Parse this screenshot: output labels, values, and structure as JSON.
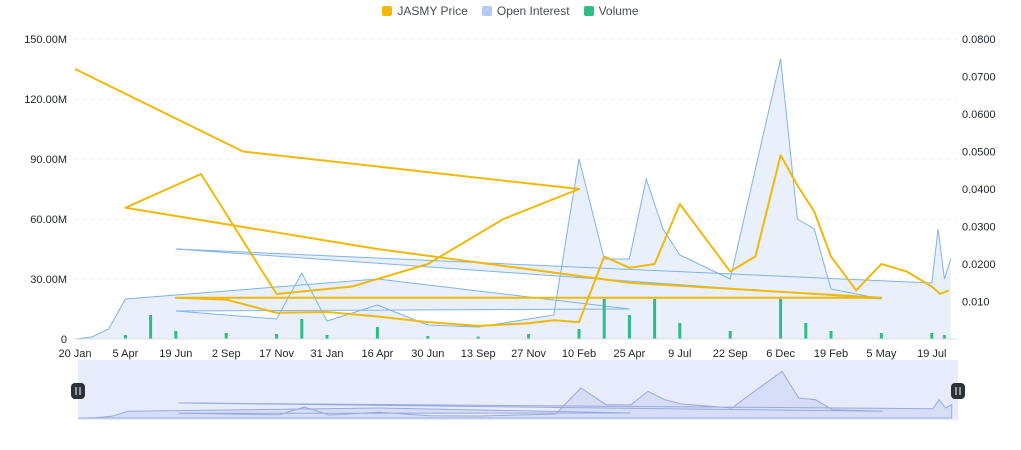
{
  "legend": [
    {
      "label": "JASMY Price",
      "color": "#f0b90b"
    },
    {
      "label": "Open Interest",
      "color": "#b8c8f5"
    },
    {
      "label": "Volume",
      "color": "#2ebd85"
    }
  ],
  "chart_data": {
    "type": "line",
    "title": "",
    "legend_placement": "top-center",
    "grid": true,
    "x_ticks": [
      "20 Jan",
      "5 Apr",
      "19 Jun",
      "2 Sep",
      "17 Nov",
      "31 Jan",
      "16 Apr",
      "30 Jun",
      "13 Sep",
      "27 Nov",
      "10 Feb",
      "25 Apr",
      "9 Jul",
      "22 Sep",
      "6 Dec",
      "19 Feb",
      "5 May",
      "19 Jul"
    ],
    "y_left_ticks": [
      "0",
      "30.00M",
      "60.00M",
      "90.00M",
      "120.00M",
      "150.00M"
    ],
    "y_left_range": [
      0,
      150000000
    ],
    "y_right_ticks": [
      "0.010",
      "0.0200",
      "0.0300",
      "0.0400",
      "0.0500",
      "0.0600",
      "0.0700",
      "0.0800"
    ],
    "y_right_range": [
      0.0,
      0.08
    ],
    "series": [
      {
        "name": "JASMY Price",
        "axis": "right",
        "color": "#f0b90b",
        "x": [
          "20 Jan",
          "27 Jan",
          "3 Feb",
          "10 Feb",
          "20 Feb",
          "1 Mar",
          "10 Mar",
          "20 Mar",
          "25 Mar",
          "5 Apr",
          "15 Apr",
          "25 Apr",
          "5 May",
          "19 Jun",
          "2 Sep",
          "17 Nov",
          "31 Jan",
          "16 Apr",
          "30 Jun",
          "13 Sep",
          "27 Nov",
          "1 Feb",
          "10 Feb",
          "15 Feb",
          "25 Apr",
          "20 May",
          "9 Jul",
          "22 Sep",
          "20 Nov",
          "6 Dec",
          "15 Dec",
          "25 Dec",
          "19 Feb",
          "20 Mar",
          "5 May",
          "1 Jun",
          "19 Jul",
          "15 Aug",
          "1 Sep"
        ],
        "values": [
          0.072,
          0.05,
          0.045,
          0.04,
          0.032,
          0.02,
          0.014,
          0.012,
          0.044,
          0.035,
          0.024,
          0.015,
          0.011,
          0.011,
          0.0105,
          0.007,
          0.0072,
          0.006,
          0.0045,
          0.0035,
          0.0042,
          0.005,
          0.0045,
          0.022,
          0.019,
          0.02,
          0.036,
          0.018,
          0.022,
          0.049,
          0.041,
          0.034,
          0.022,
          0.013,
          0.02,
          0.018,
          0.014,
          0.012,
          0.013
        ]
      },
      {
        "name": "Open Interest",
        "axis": "left",
        "color": "#7fb3ea",
        "x": [
          "20 Jan",
          "1 Mar",
          "25 Mar",
          "5 Apr",
          "15 Apr",
          "25 Apr",
          "19 Jun",
          "2 Sep",
          "17 Nov",
          "24 Nov",
          "31 Jan",
          "16 Apr",
          "30 Jun",
          "13 Sep",
          "27 Nov",
          "5 Feb",
          "10 Feb",
          "12 Feb",
          "25 Apr",
          "20 May",
          "1 Jun",
          "9 Jul",
          "22 Sep",
          "6 Dec",
          "9 Dec",
          "19 Dec",
          "19 Feb",
          "5 May",
          "19 Jun",
          "19 Jul",
          "1 Aug",
          "15 Aug",
          "1 Sep"
        ],
        "values": [
          0,
          1000000,
          5000000,
          20000000,
          30000000,
          15000000,
          14000000,
          12000000,
          10000000,
          33000000,
          9000000,
          17000000,
          7000000,
          6000000,
          10000000,
          12000000,
          90000000,
          40000000,
          40000000,
          80000000,
          55000000,
          42000000,
          30000000,
          140000000,
          60000000,
          55000000,
          25000000,
          20000000,
          45000000,
          28000000,
          55000000,
          30000000,
          40000000
        ]
      },
      {
        "name": "Volume",
        "axis": "left",
        "color": "#2ebd85",
        "x": [
          "20 Jan",
          "5 Apr",
          "15 Apr",
          "19 Jun",
          "2 Sep",
          "17 Nov",
          "24 Nov",
          "31 Jan",
          "16 Apr",
          "30 Jun",
          "13 Sep",
          "27 Nov",
          "10 Feb",
          "12 Feb",
          "25 Apr",
          "20 May",
          "9 Jul",
          "22 Sep",
          "6 Dec",
          "9 Dec",
          "19 Feb",
          "5 May",
          "19 Jul",
          "1 Sep"
        ],
        "values": [
          0,
          2000000,
          12000000,
          4000000,
          3000000,
          2500000,
          10000000,
          2000000,
          6000000,
          1500000,
          1200000,
          2500000,
          5000000,
          20000000,
          12000000,
          20000000,
          8000000,
          4000000,
          20000000,
          8000000,
          4000000,
          3000000,
          3000000,
          2000000
        ]
      }
    ]
  },
  "navigator": {
    "left_handle_icon": "pause-icon",
    "right_handle_icon": "pause-icon"
  }
}
